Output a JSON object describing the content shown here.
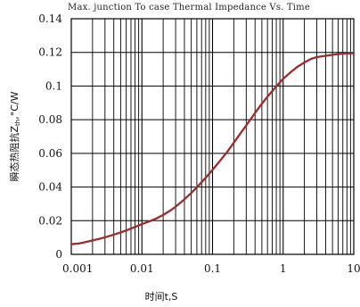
{
  "chart_data": {
    "type": "line",
    "title": "Max. junction To case Thermal Impedance Vs. Time",
    "xlabel": "时间t,S",
    "ylabel": "瞬态热阻抗Z",
    "ylabel_sub": "th",
    "ylabel_unit": ",°C/W",
    "x_scale": "log",
    "xlim": [
      0.001,
      10
    ],
    "ylim": [
      0,
      0.14
    ],
    "x_ticks": [
      0.001,
      0.01,
      0.1,
      1,
      10
    ],
    "x_tick_labels": [
      "0.001",
      "0.01",
      "0.1",
      "1",
      "10"
    ],
    "y_ticks": [
      0,
      0.02,
      0.04,
      0.06,
      0.08,
      0.1,
      0.12,
      0.14
    ],
    "y_tick_labels": [
      "0",
      "0.02",
      "0.04",
      "0.06",
      "0.08",
      "0.1",
      "0.12",
      "0.14"
    ],
    "grid": true,
    "series": [
      {
        "color": "#9b2c2c",
        "x": [
          0.001,
          0.0013,
          0.0016,
          0.002,
          0.0025,
          0.003,
          0.004,
          0.005,
          0.006,
          0.008,
          0.01,
          0.013,
          0.016,
          0.02,
          0.025,
          0.03,
          0.04,
          0.05,
          0.06,
          0.08,
          0.1,
          0.13,
          0.16,
          0.2,
          0.25,
          0.3,
          0.4,
          0.5,
          0.6,
          0.8,
          1,
          1.3,
          1.6,
          2,
          2.5,
          3,
          4,
          5,
          6,
          8,
          10
        ],
        "y": [
          0.006,
          0.0065,
          0.0073,
          0.0083,
          0.0092,
          0.0101,
          0.0117,
          0.013,
          0.0142,
          0.0163,
          0.018,
          0.0197,
          0.0213,
          0.0234,
          0.0259,
          0.0283,
          0.0327,
          0.0365,
          0.0398,
          0.0455,
          0.0502,
          0.056,
          0.0607,
          0.0663,
          0.072,
          0.0766,
          0.084,
          0.0895,
          0.0937,
          0.0998,
          0.1043,
          0.1085,
          0.1115,
          0.114,
          0.1162,
          0.1172,
          0.118,
          0.1186,
          0.119,
          0.1193,
          0.1195
        ]
      }
    ]
  }
}
